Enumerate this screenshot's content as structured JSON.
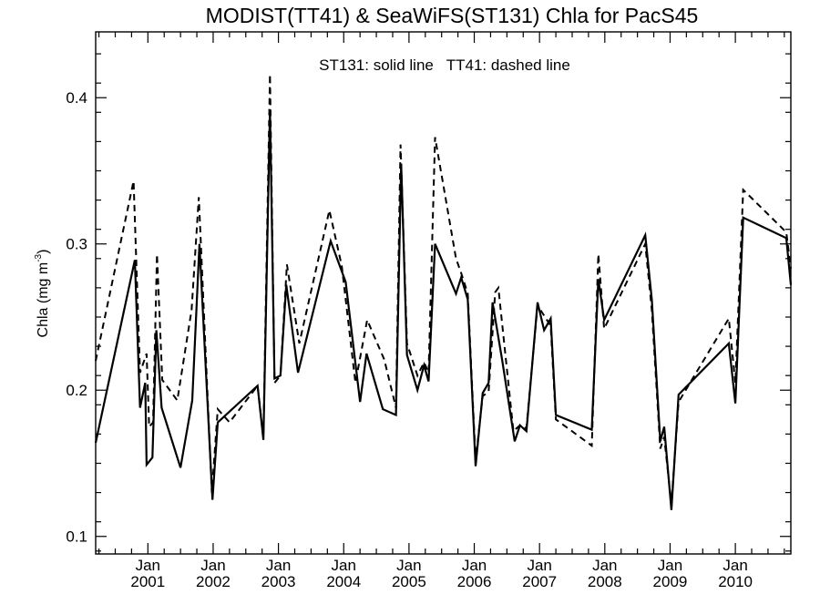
{
  "chart_data": {
    "type": "line",
    "title": "MODIST(TT41) & SeaWiFS(ST131)  Chla for PacS45",
    "annotation": "ST131: solid line   TT41: dashed line",
    "xlabel": "",
    "ylabel": "Chla (mg m",
    "ylabel_sup": "-3",
    "ylabel_close": ")",
    "xlim": [
      2000.2,
      2010.85
    ],
    "ylim": [
      0.088,
      0.445
    ],
    "yticks": [
      0.1,
      0.2,
      0.3,
      0.4
    ],
    "ytick_labels": [
      "0.1",
      "0.2",
      "0.3",
      "0.4"
    ],
    "xticks": [
      {
        "x": 2001,
        "month": "Jan",
        "year": "2001"
      },
      {
        "x": 2002,
        "month": "Jan",
        "year": "2002"
      },
      {
        "x": 2003,
        "month": "Jan",
        "year": "2003"
      },
      {
        "x": 2004,
        "month": "Jan",
        "year": "2004"
      },
      {
        "x": 2005,
        "month": "Jan",
        "year": "2005"
      },
      {
        "x": 2006,
        "month": "Jan",
        "year": "2006"
      },
      {
        "x": 2007,
        "month": "Jan",
        "year": "2007"
      },
      {
        "x": 2008,
        "month": "Jan",
        "year": "2008"
      },
      {
        "x": 2009,
        "month": "Jan",
        "year": "2009"
      },
      {
        "x": 2010,
        "month": "Jan",
        "year": "2010"
      }
    ],
    "series": [
      {
        "style": "solid",
        "points": [
          [
            2000.2,
            0.164
          ],
          [
            2000.8,
            0.289
          ],
          [
            2000.88,
            0.188
          ],
          [
            2000.96,
            0.205
          ],
          [
            2000.98,
            0.149
          ],
          [
            2001.07,
            0.154
          ],
          [
            2001.13,
            0.241
          ],
          [
            2001.21,
            0.188
          ],
          [
            2001.5,
            0.147
          ],
          [
            2001.68,
            0.193
          ],
          [
            2001.79,
            0.3
          ],
          [
            2001.99,
            0.125
          ],
          [
            2002.07,
            0.178
          ],
          [
            2002.12,
            0.18
          ],
          [
            2002.68,
            0.203
          ],
          [
            2002.77,
            0.166
          ],
          [
            2002.87,
            0.392
          ],
          [
            2002.94,
            0.208
          ],
          [
            2003.03,
            0.21
          ],
          [
            2003.12,
            0.272
          ],
          [
            2003.3,
            0.212
          ],
          [
            2003.8,
            0.302
          ],
          [
            2004.03,
            0.274
          ],
          [
            2004.25,
            0.192
          ],
          [
            2004.35,
            0.225
          ],
          [
            2004.6,
            0.187
          ],
          [
            2004.8,
            0.183
          ],
          [
            2004.88,
            0.355
          ],
          [
            2004.97,
            0.224
          ],
          [
            2005.13,
            0.2
          ],
          [
            2005.23,
            0.217
          ],
          [
            2005.3,
            0.206
          ],
          [
            2005.4,
            0.3
          ],
          [
            2005.72,
            0.266
          ],
          [
            2005.8,
            0.277
          ],
          [
            2005.9,
            0.262
          ],
          [
            2006.02,
            0.148
          ],
          [
            2006.13,
            0.198
          ],
          [
            2006.22,
            0.205
          ],
          [
            2006.28,
            0.26
          ],
          [
            2006.43,
            0.22
          ],
          [
            2006.62,
            0.165
          ],
          [
            2006.7,
            0.176
          ],
          [
            2006.8,
            0.172
          ],
          [
            2006.97,
            0.26
          ],
          [
            2007.07,
            0.241
          ],
          [
            2007.17,
            0.249
          ],
          [
            2007.25,
            0.183
          ],
          [
            2007.8,
            0.173
          ],
          [
            2007.9,
            0.276
          ],
          [
            2007.99,
            0.248
          ],
          [
            2008.62,
            0.306
          ],
          [
            2008.72,
            0.262
          ],
          [
            2008.85,
            0.165
          ],
          [
            2008.91,
            0.175
          ],
          [
            2009.02,
            0.118
          ],
          [
            2009.13,
            0.197
          ],
          [
            2009.9,
            0.232
          ],
          [
            2010.0,
            0.191
          ],
          [
            2010.12,
            0.318
          ],
          [
            2010.78,
            0.304
          ],
          [
            2010.85,
            0.272
          ]
        ]
      },
      {
        "style": "dashed",
        "points": [
          [
            2000.2,
            0.22
          ],
          [
            2000.78,
            0.343
          ],
          [
            2000.88,
            0.212
          ],
          [
            2000.98,
            0.225
          ],
          [
            2001.02,
            0.175
          ],
          [
            2001.08,
            0.178
          ],
          [
            2001.14,
            0.293
          ],
          [
            2001.22,
            0.207
          ],
          [
            2001.45,
            0.193
          ],
          [
            2001.67,
            0.255
          ],
          [
            2001.78,
            0.332
          ],
          [
            2001.98,
            0.13
          ],
          [
            2002.07,
            0.187
          ],
          [
            2002.25,
            0.178
          ],
          [
            2002.68,
            0.203
          ],
          [
            2002.77,
            0.168
          ],
          [
            2002.87,
            0.416
          ],
          [
            2002.94,
            0.205
          ],
          [
            2003.03,
            0.21
          ],
          [
            2003.13,
            0.286
          ],
          [
            2003.32,
            0.232
          ],
          [
            2003.78,
            0.323
          ],
          [
            2003.97,
            0.285
          ],
          [
            2004.18,
            0.205
          ],
          [
            2004.36,
            0.248
          ],
          [
            2004.62,
            0.221
          ],
          [
            2004.8,
            0.188
          ],
          [
            2004.87,
            0.368
          ],
          [
            2004.97,
            0.232
          ],
          [
            2005.13,
            0.21
          ],
          [
            2005.23,
            0.219
          ],
          [
            2005.3,
            0.212
          ],
          [
            2005.4,
            0.373
          ],
          [
            2005.72,
            0.29
          ],
          [
            2005.8,
            0.28
          ],
          [
            2005.9,
            0.266
          ],
          [
            2006.02,
            0.152
          ],
          [
            2006.13,
            0.196
          ],
          [
            2006.22,
            0.199
          ],
          [
            2006.32,
            0.267
          ],
          [
            2006.37,
            0.27
          ],
          [
            2006.6,
            0.172
          ],
          [
            2006.7,
            0.176
          ],
          [
            2006.8,
            0.174
          ],
          [
            2006.97,
            0.258
          ],
          [
            2007.07,
            0.251
          ],
          [
            2007.17,
            0.244
          ],
          [
            2007.25,
            0.18
          ],
          [
            2007.8,
            0.162
          ],
          [
            2007.9,
            0.293
          ],
          [
            2007.99,
            0.242
          ],
          [
            2008.62,
            0.3
          ],
          [
            2008.72,
            0.255
          ],
          [
            2008.85,
            0.16
          ],
          [
            2008.91,
            0.168
          ],
          [
            2009.02,
            0.122
          ],
          [
            2009.13,
            0.192
          ],
          [
            2009.9,
            0.249
          ],
          [
            2010.0,
            0.205
          ],
          [
            2010.12,
            0.337
          ],
          [
            2010.78,
            0.308
          ],
          [
            2010.85,
            0.283
          ]
        ]
      }
    ]
  }
}
